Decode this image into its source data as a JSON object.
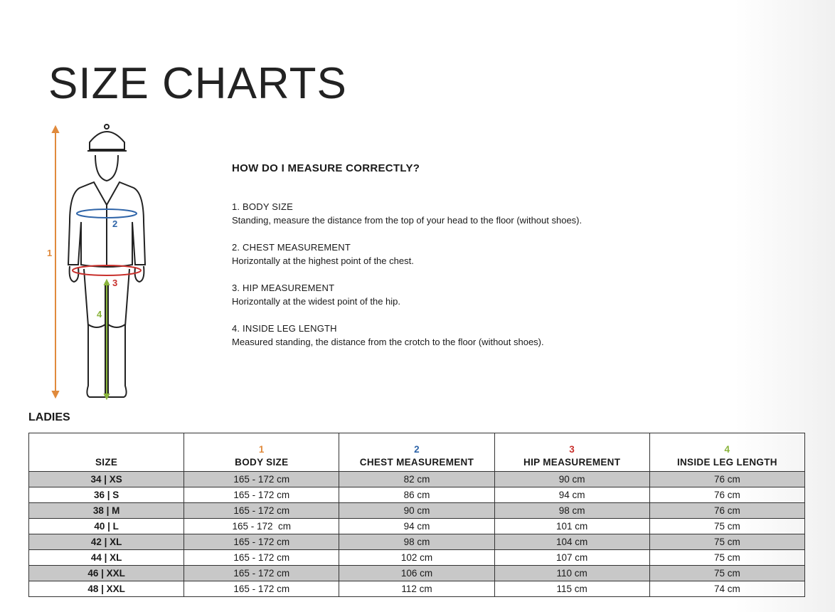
{
  "title": "SIZE CHARTS",
  "colors": {
    "body_size": "#e08a3c",
    "chest": "#2e64a8",
    "hip": "#c8302c",
    "inside_leg": "#8ab43c",
    "row_shade": "#c8c8c8"
  },
  "figure": {
    "labels": [
      "1",
      "2",
      "3",
      "4"
    ]
  },
  "howto": {
    "heading": "HOW DO I MEASURE CORRECTLY?",
    "steps": [
      {
        "title": "1. BODY SIZE",
        "text": "Standing, measure the distance from the top of your head to the floor (without shoes)."
      },
      {
        "title": "2. CHEST MEASUREMENT",
        "text": "Horizontally at the highest point of the chest."
      },
      {
        "title": "3. HIP MEASUREMENT",
        "text": "Horizontally at the widest point of the hip."
      },
      {
        "title": "4. INSIDE LEG LENGTH",
        "text": "Measured standing, the distance from the crotch to the floor (without shoes)."
      }
    ]
  },
  "section": "LADIES",
  "table": {
    "headers": [
      {
        "num": "",
        "label": "SIZE"
      },
      {
        "num": "1",
        "label": "BODY SIZE"
      },
      {
        "num": "2",
        "label": "CHEST MEASUREMENT"
      },
      {
        "num": "3",
        "label": "HIP MEASUREMENT"
      },
      {
        "num": "4",
        "label": "INSIDE LEG LENGTH"
      }
    ],
    "rows": [
      [
        "34 | XS",
        "165 - 172 cm",
        "82 cm",
        "90 cm",
        "76 cm"
      ],
      [
        "36 | S",
        "165 - 172 cm",
        "86 cm",
        "94 cm",
        "76 cm"
      ],
      [
        "38 | M",
        "165 - 172 cm",
        "90 cm",
        "98 cm",
        "76 cm"
      ],
      [
        "40 | L",
        "165 - 172  cm",
        "94 cm",
        "101 cm",
        "75 cm"
      ],
      [
        "42 | XL",
        "165 - 172 cm",
        "98 cm",
        "104 cm",
        "75 cm"
      ],
      [
        "44 | XL",
        "165 - 172 cm",
        "102 cm",
        "107 cm",
        "75 cm"
      ],
      [
        "46 | XXL",
        "165 - 172 cm",
        "106 cm",
        "110 cm",
        "75 cm"
      ],
      [
        "48 | XXL",
        "165 - 172 cm",
        "112 cm",
        "115 cm",
        "74 cm"
      ]
    ]
  }
}
